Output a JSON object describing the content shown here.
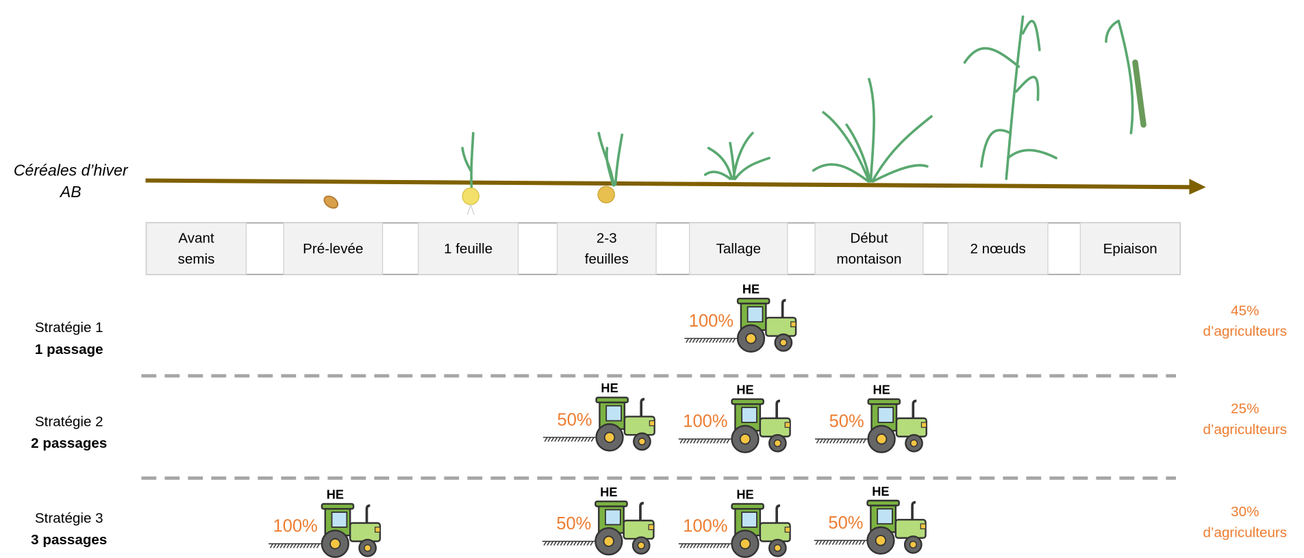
{
  "title": {
    "lines": [
      "Céréales d’hiver",
      "AB"
    ]
  },
  "stages": [
    [
      "Avant",
      "semis"
    ],
    [
      "Pré-levée"
    ],
    [
      "1 feuille"
    ],
    [
      "2-3",
      "feuilles"
    ],
    [
      "Tallage"
    ],
    [
      "Début",
      "montaison"
    ],
    [
      "2 nœuds"
    ],
    [
      "Epiaison"
    ]
  ],
  "strategies": [
    {
      "name": "Stratégie 1",
      "passes": "1 passage",
      "share": [
        "45%",
        "d’agriculteurs"
      ],
      "treatments": [
        {
          "label": "HE",
          "dose": "100%"
        }
      ]
    },
    {
      "name": "Stratégie 2",
      "passes": "2 passages",
      "share": [
        "25%",
        "d’agriculteurs"
      ],
      "treatments": [
        {
          "label": "HE",
          "dose": "50%"
        },
        {
          "label": "HE",
          "dose": "100%"
        },
        {
          "label": "HE",
          "dose": "50%"
        }
      ]
    },
    {
      "name": "Stratégie 3",
      "passes": "3 passages",
      "share": [
        "30%",
        "d’agriculteurs"
      ],
      "treatments": [
        {
          "label": "HE",
          "dose": "100%"
        },
        {
          "label": "HE",
          "dose": "50%"
        },
        {
          "label": "HE",
          "dose": "100%"
        },
        {
          "label": "HE",
          "dose": "50%"
        }
      ]
    }
  ]
}
